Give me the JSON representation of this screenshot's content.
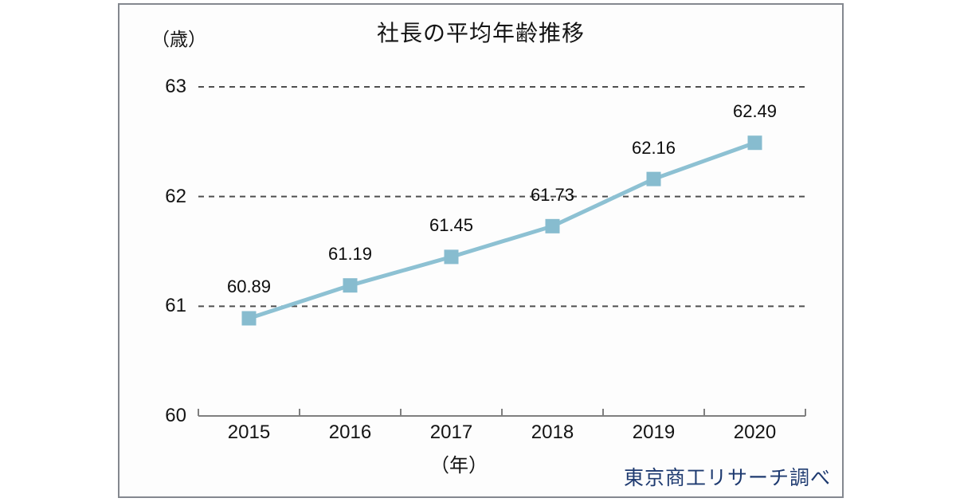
{
  "chart_data": {
    "type": "line",
    "title": "社長の平均年齢推移",
    "categories": [
      "2015",
      "2016",
      "2017",
      "2018",
      "2019",
      "2020"
    ],
    "values": [
      60.89,
      61.19,
      61.45,
      61.73,
      62.16,
      62.49
    ],
    "point_labels": [
      "60.89",
      "61.19",
      "61.45",
      "61.73",
      "62.16",
      "62.49"
    ],
    "xlabel": "（年）",
    "ylabel": "（歳）",
    "ylim": [
      60,
      63
    ],
    "yticks": [
      63,
      62,
      61,
      60
    ],
    "ytick_labels": [
      "63",
      "62",
      "61",
      "60"
    ],
    "grid": "horizontal-dashed-at-61-62-63",
    "legend": "none",
    "marker": "square",
    "source": "東京商工リサーチ調べ",
    "colors": {
      "line": "#8dc1d3",
      "marker": "#87bccf",
      "grid": "#4f4f4f",
      "axis": "#7f7f7f",
      "text": "#141414",
      "source_text": "#1e3a70",
      "frame_border": "#84888f"
    }
  }
}
